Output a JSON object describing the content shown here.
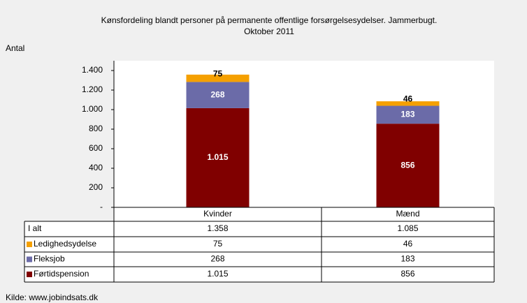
{
  "chart_data": {
    "type": "stacked_bar",
    "title": [
      "Kønsfordeling blandt personer på permanente offentlige forsørgelsesydelser. Jammerbugt.",
      "Oktober 2011"
    ],
    "y_label": "Antal",
    "categories": [
      "Kvinder",
      "Mænd"
    ],
    "series": [
      {
        "name": "Førtidspension",
        "color": "#800000",
        "values": [
          1015,
          856
        ],
        "value_labels": [
          "1.015",
          "856"
        ]
      },
      {
        "name": "Fleksjob",
        "color": "#6b6ba8",
        "values": [
          268,
          183
        ]
      },
      {
        "name": "Ledighedsydelse",
        "color": "#f5a000",
        "values": [
          75,
          46
        ]
      }
    ],
    "ylim": [
      0,
      1500
    ],
    "yticks": [
      {
        "value": 0,
        "label": "-"
      },
      200,
      400,
      600,
      800,
      {
        "value": 1000,
        "label": "1.000"
      },
      {
        "value": 1200,
        "label": "1.200"
      },
      {
        "value": 1400,
        "label": "1.400"
      }
    ],
    "table": {
      "total_label": "I alt",
      "totals": [
        1358,
        1085
      ],
      "total_labels": [
        "1.358",
        "1.085"
      ]
    },
    "source": "Kilde: www.jobindsats.dk"
  }
}
